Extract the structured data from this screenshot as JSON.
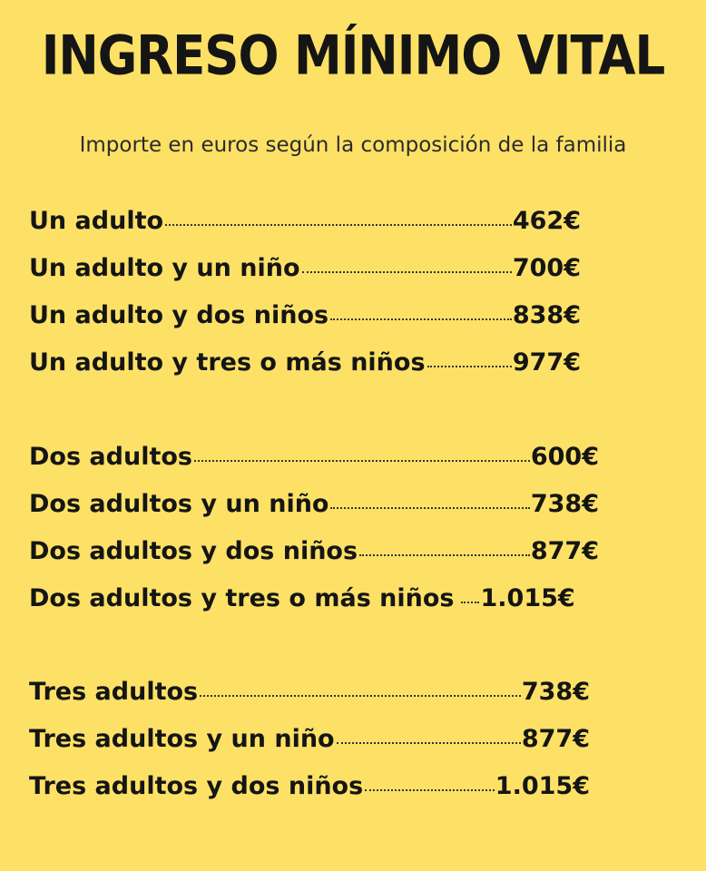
{
  "title": "INGRESO MÍNIMO VITAL",
  "subtitle": "Importe en euros según la composición de la familia",
  "groups": [
    {
      "rows": [
        {
          "label": "Un adulto",
          "price": "462€"
        },
        {
          "label": "Un adulto y un niño",
          "price": "700€"
        },
        {
          "label": "Un adulto y dos niños",
          "price": "838€"
        },
        {
          "label": "Un adulto y tres o más niños",
          "price": "977€"
        }
      ]
    },
    {
      "rows": [
        {
          "label": "Dos adultos",
          "price": "600€"
        },
        {
          "label": "Dos adultos y un niño",
          "price": "738€"
        },
        {
          "label": "Dos adultos y dos niños",
          "price": "877€"
        },
        {
          "label": "Dos adultos y tres o más niños",
          "price": "1.015€"
        }
      ]
    },
    {
      "rows": [
        {
          "label": "Tres adultos",
          "price": "738€"
        },
        {
          "label": "Tres adultos y un niño",
          "price": "877€"
        },
        {
          "label": "Tres adultos y dos niños",
          "price": "1.015€"
        }
      ]
    }
  ],
  "colors": {
    "background": "#fde166",
    "text": "#151515"
  }
}
